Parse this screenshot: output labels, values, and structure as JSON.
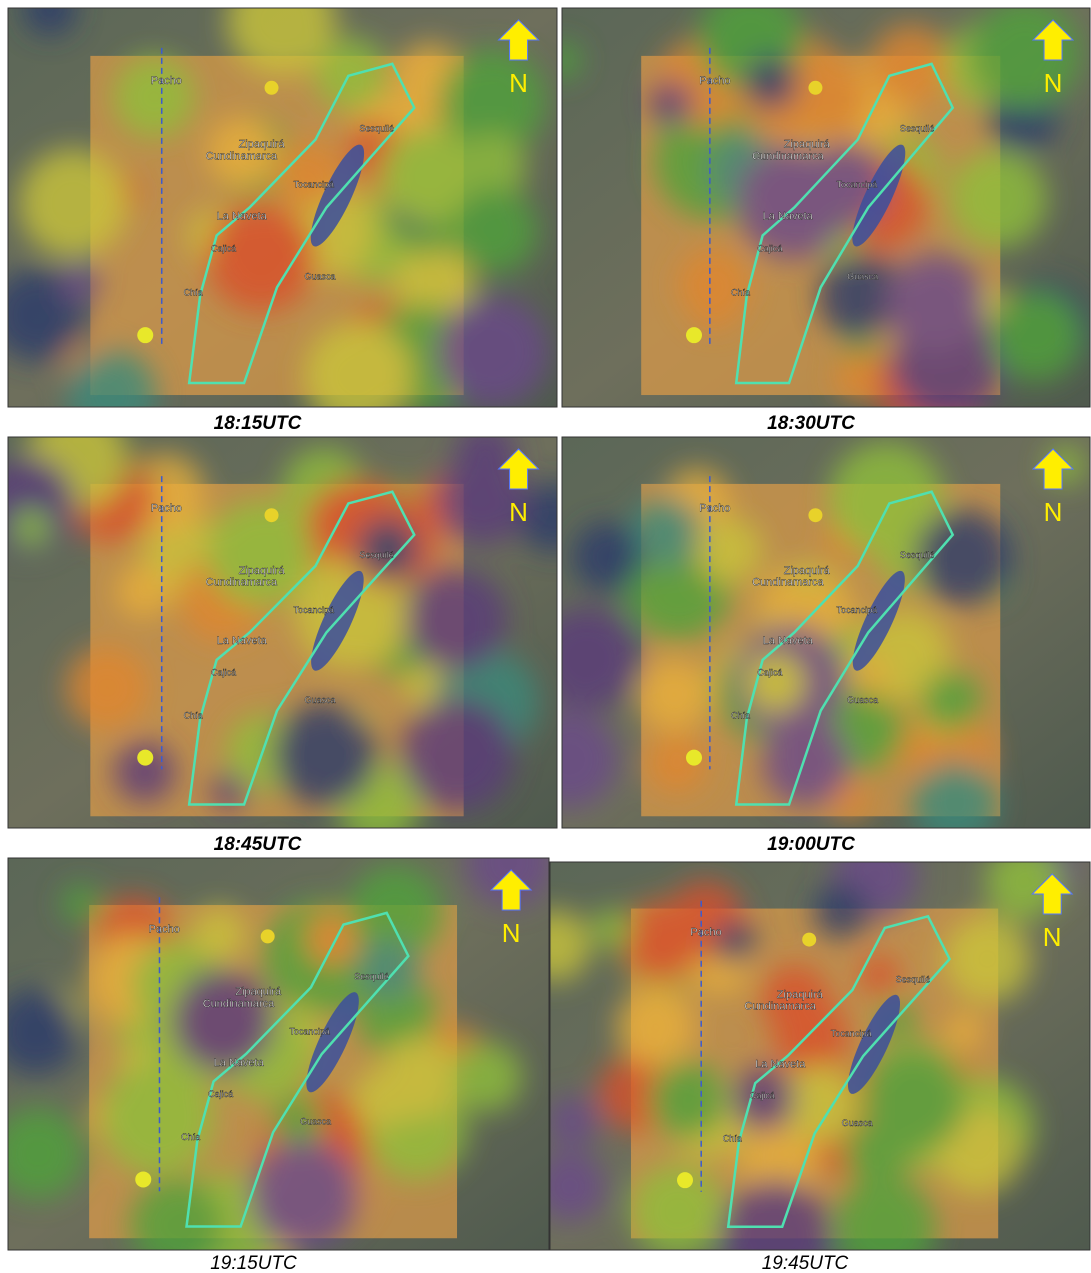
{
  "panels": [
    {
      "caption": "18:15UTC",
      "north": "N",
      "places": [
        "Pacho",
        "Cundinamarca",
        "Zipaquirá",
        "La Naveta",
        "Chía",
        "Sesquilé",
        "Guasca",
        "Cajicá",
        "Tocancipá"
      ]
    },
    {
      "caption": "18:30UTC",
      "north": "N",
      "places": [
        "Pacho",
        "Cundinamarca",
        "Zipaquirá",
        "La Naveta",
        "Chía",
        "Sesquilé",
        "Guasca",
        "Cajicá",
        "Tocancipá"
      ]
    },
    {
      "caption": "18:45UTC",
      "north": "N",
      "places": [
        "Pacho",
        "Cundinamarca",
        "Zipaquirá",
        "La Naveta",
        "Chía",
        "Sesquilé",
        "Guasca",
        "Cajicá",
        "Tocancipá"
      ]
    },
    {
      "caption": "19:00UTC",
      "north": "N",
      "places": [
        "Pacho",
        "Cundinamarca",
        "Zipaquirá",
        "La Naveta",
        "Chía",
        "Sesquilé",
        "Guasca",
        "Cajicá",
        "Tocancipá"
      ]
    },
    {
      "caption": "19:15UTC",
      "north": "N",
      "places": [
        "Pacho",
        "Cundinamarca",
        "Zipaquirá",
        "La Naveta",
        "Chía",
        "Sesquilé",
        "Guasca",
        "Cajicá",
        "Tocancipá"
      ]
    },
    {
      "caption": "19:45UTC",
      "north": "N",
      "places": [
        "Pacho",
        "Cundinamarca",
        "Zipaquirá",
        "La Naveta",
        "Chía",
        "Sesquilé",
        "Guasca",
        "Cajicá",
        "Tocancipá"
      ]
    }
  ]
}
